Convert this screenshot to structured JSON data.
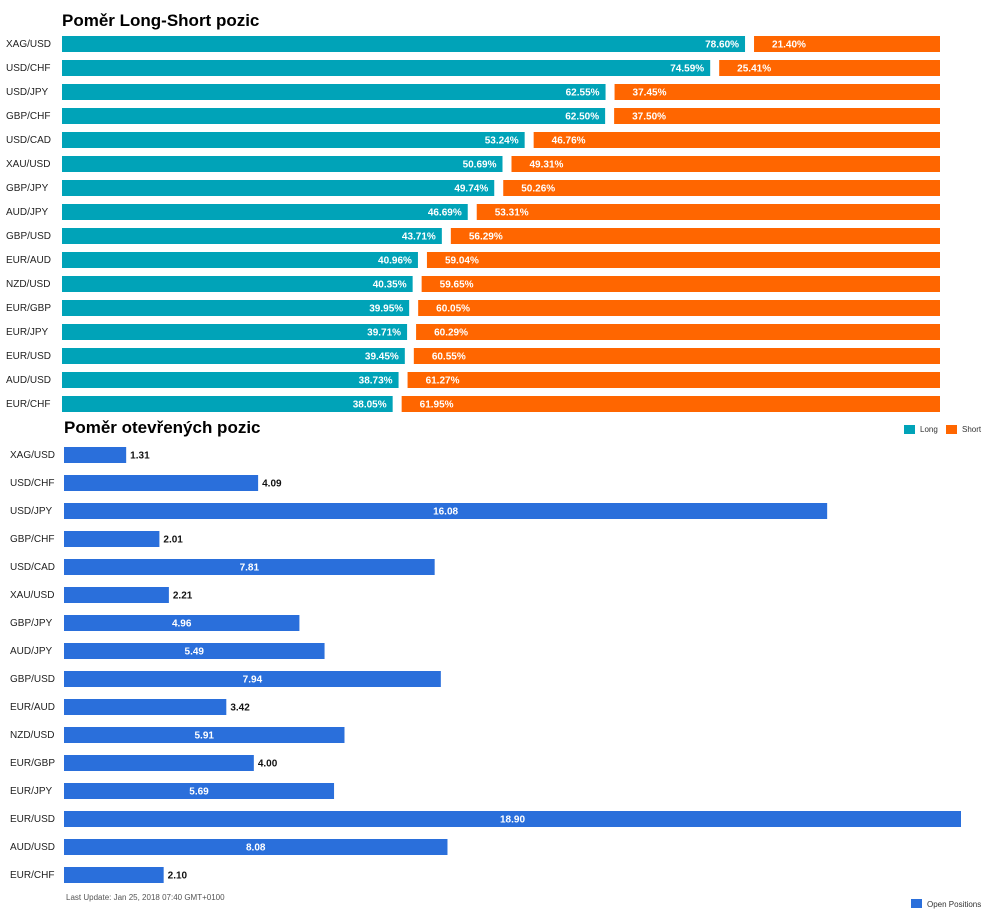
{
  "colors": {
    "long": "#00a3b8",
    "short": "#ff6600",
    "open": "#2a6fdb"
  },
  "footnote": "Last Update: Jan 25, 2018 07:40 GMT+0100",
  "chart_data": [
    {
      "type": "bar",
      "stacked": true,
      "orientation": "horizontal",
      "title": "Poměr Long-Short pozic",
      "categories": [
        "XAG/USD",
        "USD/CHF",
        "USD/JPY",
        "GBP/CHF",
        "USD/CAD",
        "XAU/USD",
        "GBP/JPY",
        "AUD/JPY",
        "GBP/USD",
        "EUR/AUD",
        "NZD/USD",
        "EUR/GBP",
        "EUR/JPY",
        "EUR/USD",
        "AUD/USD",
        "EUR/CHF"
      ],
      "series": [
        {
          "name": "Long",
          "values": [
            78.6,
            74.59,
            62.55,
            62.5,
            53.24,
            50.69,
            49.74,
            46.69,
            43.71,
            40.96,
            40.35,
            39.95,
            39.71,
            39.45,
            38.73,
            38.05
          ],
          "labels": [
            "78.60%",
            "74.59%",
            "62.55%",
            "62.50%",
            "53.24%",
            "50.69%",
            "49.74%",
            "46.69%",
            "43.71%",
            "40.96%",
            "40.35%",
            "39.95%",
            "39.71%",
            "39.45%",
            "38.73%",
            "38.05%"
          ]
        },
        {
          "name": "Short",
          "values": [
            21.4,
            25.41,
            37.45,
            37.5,
            46.76,
            49.31,
            50.26,
            53.31,
            56.29,
            59.04,
            59.65,
            60.05,
            60.29,
            60.55,
            61.27,
            61.95
          ],
          "labels": [
            "21.40%",
            "25.41%",
            "37.45%",
            "37.50%",
            "46.76%",
            "49.31%",
            "50.26%",
            "53.31%",
            "56.29%",
            "59.04%",
            "59.65%",
            "60.05%",
            "60.29%",
            "60.55%",
            "61.27%",
            "61.95%"
          ]
        }
      ],
      "legend": "top-right",
      "xlim": [
        0,
        100
      ],
      "grid": false
    },
    {
      "type": "bar",
      "orientation": "horizontal",
      "title": "Poměr otevřených pozic",
      "categories": [
        "XAG/USD",
        "USD/CHF",
        "USD/JPY",
        "GBP/CHF",
        "USD/CAD",
        "XAU/USD",
        "GBP/JPY",
        "AUD/JPY",
        "GBP/USD",
        "EUR/AUD",
        "NZD/USD",
        "EUR/GBP",
        "EUR/JPY",
        "EUR/USD",
        "AUD/USD",
        "EUR/CHF"
      ],
      "series": [
        {
          "name": "Open Positions",
          "values": [
            1.31,
            4.09,
            16.08,
            2.01,
            7.81,
            2.21,
            4.96,
            5.49,
            7.94,
            3.42,
            5.91,
            4.0,
            5.69,
            18.9,
            8.08,
            2.1
          ],
          "labels": [
            "1.31",
            "4.09",
            "16.08",
            "2.01",
            "7.81",
            "2.21",
            "4.96",
            "5.49",
            "7.94",
            "3.42",
            "5.91",
            "4.00",
            "5.69",
            "18.90",
            "8.08",
            "2.10"
          ]
        }
      ],
      "legend": "bottom-right",
      "xlim": [
        0,
        18.9
      ],
      "grid": false
    }
  ]
}
